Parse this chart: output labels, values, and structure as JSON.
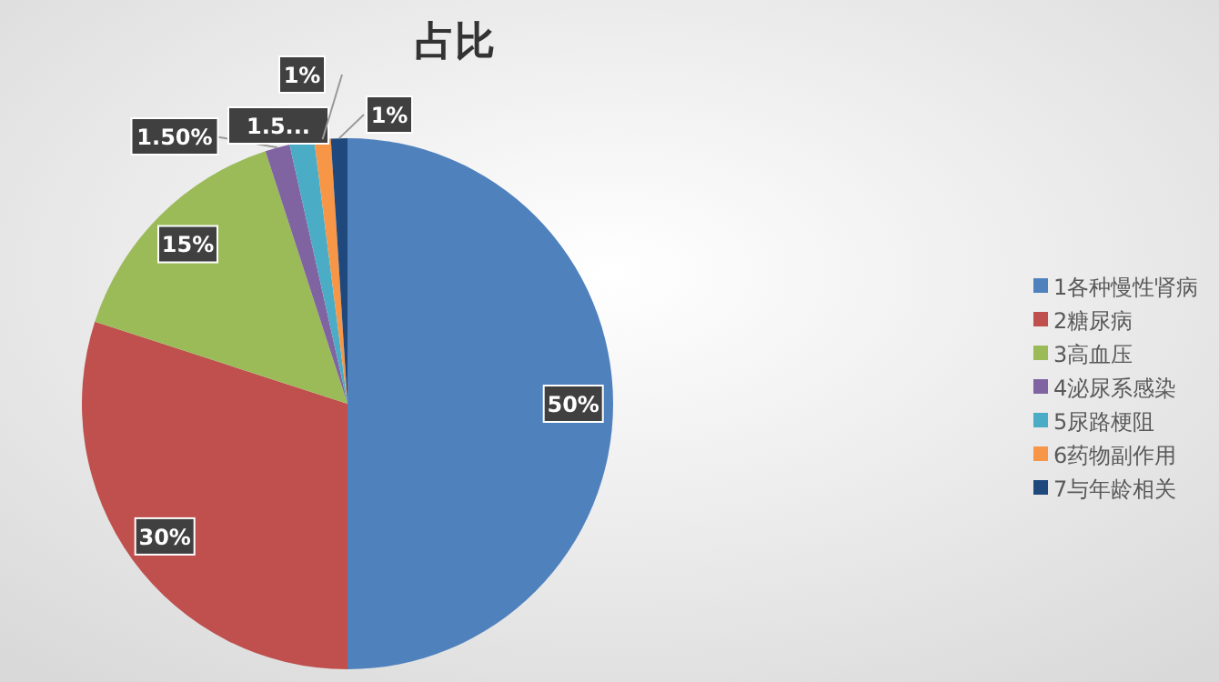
{
  "chart_data": {
    "type": "pie",
    "title": "占比",
    "categories": [
      "1各种慢性肾病",
      "2糖尿病",
      "3高血压",
      "4泌尿系感染",
      "5尿路梗阻",
      "6药物副作用",
      "7与年龄相关"
    ],
    "values": [
      50,
      30,
      15,
      1.5,
      1.5,
      1,
      1
    ],
    "value_labels": [
      "50%",
      "30%",
      "15%",
      "1.50%",
      "1.5...",
      "1%",
      "1%"
    ],
    "colors": [
      "#4f81bd",
      "#c0504d",
      "#9bbb59",
      "#8064a2",
      "#4bacc6",
      "#f79646",
      "#1f497d"
    ],
    "legend": "right"
  }
}
